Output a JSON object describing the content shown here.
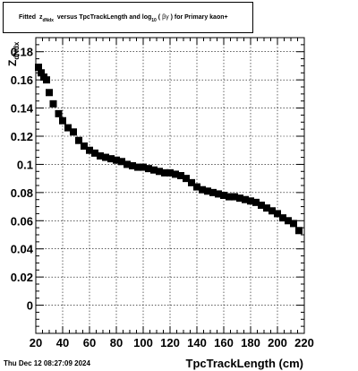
{
  "title": {
    "prefix": "Fitted",
    "var": "z",
    "var_sub": "dNdx",
    "middle": "versus TpcTrackLength and log",
    "log_sub": "10",
    "paren_open": "(",
    "beta": "β",
    "gamma": "γ",
    "paren_close": ")",
    "suffix": "for Primary kaon+"
  },
  "timestamp": "Thu Dec 12 08:27:09 2024",
  "chart_data": {
    "type": "scatter",
    "title": "Fitted z dNdx versus TpcTrackLength and log 10 ( β γ ) for Primary kaon+",
    "xlabel": "TpcTrackLength (cm)",
    "ylabel": "Z",
    "ylabel_sub": "dNdx",
    "xlim": [
      20,
      220
    ],
    "ylim": [
      -0.02,
      0.19
    ],
    "grid": true,
    "marker": "square",
    "color": "#000000",
    "x_ticks": [
      "20",
      "40",
      "60",
      "80",
      "100",
      "120",
      "140",
      "160",
      "180",
      "200",
      "220"
    ],
    "y_ticks": [
      "0",
      "0.02",
      "0.04",
      "0.06",
      "0.08",
      "0.1",
      "0.12",
      "0.14",
      "0.16",
      "0.18"
    ],
    "x": [
      22,
      24,
      26,
      28,
      30,
      33,
      37,
      40,
      44,
      48,
      52,
      56,
      60,
      64,
      68,
      72,
      76,
      80,
      84,
      88,
      92,
      96,
      100,
      104,
      108,
      112,
      116,
      120,
      124,
      128,
      132,
      136,
      140,
      144,
      148,
      152,
      156,
      160,
      164,
      168,
      172,
      176,
      180,
      184,
      188,
      192,
      196,
      200,
      204,
      208,
      212,
      216
    ],
    "y": [
      0.169,
      0.165,
      0.162,
      0.16,
      0.151,
      0.143,
      0.136,
      0.131,
      0.126,
      0.123,
      0.117,
      0.113,
      0.11,
      0.108,
      0.106,
      0.105,
      0.104,
      0.103,
      0.102,
      0.1,
      0.099,
      0.098,
      0.098,
      0.097,
      0.096,
      0.095,
      0.094,
      0.094,
      0.093,
      0.092,
      0.09,
      0.087,
      0.084,
      0.082,
      0.081,
      0.08,
      0.079,
      0.078,
      0.077,
      0.077,
      0.076,
      0.075,
      0.074,
      0.073,
      0.071,
      0.069,
      0.067,
      0.065,
      0.062,
      0.06,
      0.058,
      0.053
    ]
  }
}
